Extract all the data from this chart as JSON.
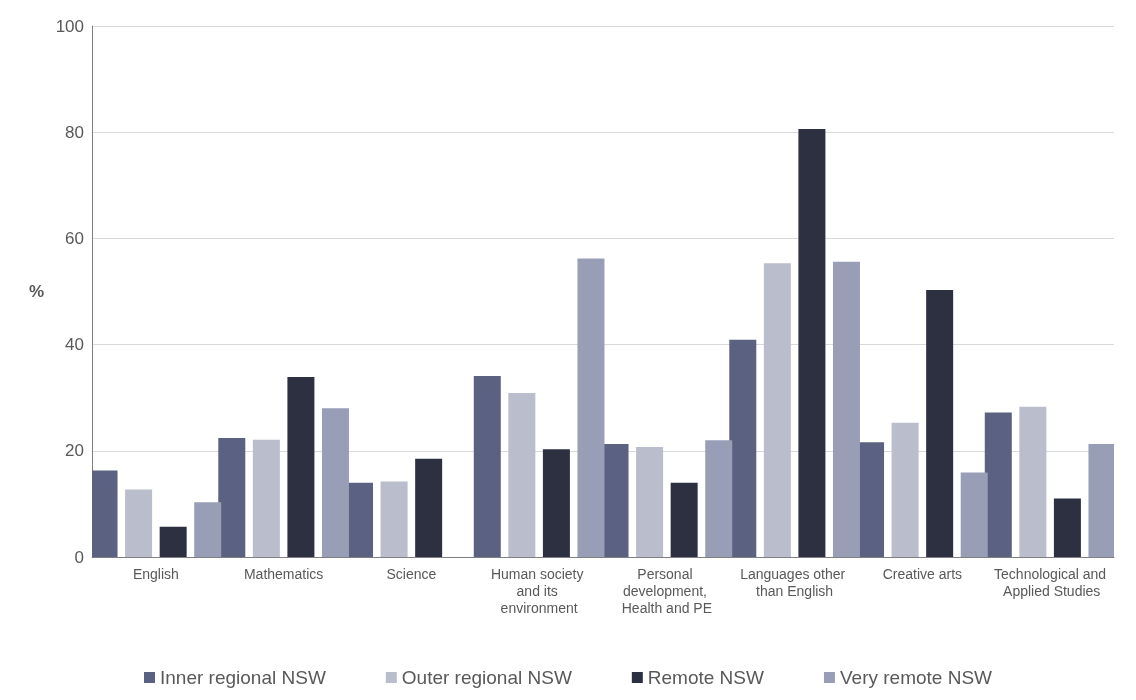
{
  "chart_data": {
    "type": "bar",
    "ylabel": "%",
    "categories": [
      "English",
      "Mathematics",
      "Science",
      "Human society and its environment",
      "Personal development, Health and PE",
      "Languages other than English",
      "Creative arts",
      "Technological and Applied Studies"
    ],
    "series": [
      {
        "name": "Inner regional NSW",
        "color": "#5b6180",
        "values": [
          16.3,
          22.4,
          14,
          34.1,
          21.3,
          40.9,
          21.6,
          27.2
        ]
      },
      {
        "name": "Outer regional NSW",
        "color": "#babdcb",
        "values": [
          12.7,
          22.1,
          14.2,
          30.9,
          20.7,
          55.3,
          25.3,
          28.3
        ]
      },
      {
        "name": "Remote NSW",
        "color": "#2d3040",
        "values": [
          5.7,
          33.9,
          18.5,
          20.3,
          14,
          80.6,
          50.3,
          11
        ]
      },
      {
        "name": "Very remote NSW",
        "color": "#999eb7",
        "values": [
          10.3,
          28,
          null,
          56.2,
          22,
          55.6,
          15.9,
          21.3
        ]
      }
    ],
    "ylim": [
      0,
      100
    ],
    "yticks": [
      0,
      20,
      40,
      60,
      80,
      100
    ],
    "grid": "y",
    "legend": "bottom"
  }
}
